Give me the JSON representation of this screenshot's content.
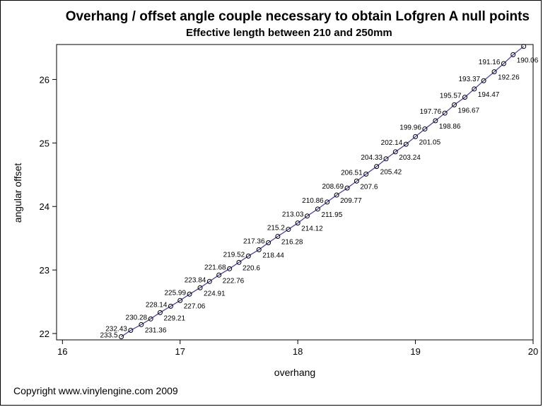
{
  "chart_data": {
    "type": "line",
    "title": "Overhang / offset angle couple necessary to obtain Lofgren A null points",
    "subtitle": "Effective length between 210 and 250mm",
    "xlabel": "overhang",
    "ylabel": "angular offset",
    "xlim": [
      15.95,
      20.0
    ],
    "ylim": [
      21.9,
      26.55
    ],
    "xticks": [
      "16",
      "17",
      "18",
      "19",
      "20"
    ],
    "yticks": [
      "22",
      "23",
      "24",
      "25",
      "26"
    ],
    "grid": false,
    "legend": "none",
    "line_color": "#3a3aa8",
    "marker_color": "#000000",
    "series": [
      {
        "x": [
          16.5,
          16.58,
          16.67,
          16.75,
          16.83,
          16.92,
          17.0,
          17.08,
          17.17,
          17.25,
          17.33,
          17.42,
          17.5,
          17.58,
          17.67,
          17.75,
          17.83,
          17.92,
          18.0,
          18.08,
          18.17,
          18.25,
          18.33,
          18.42,
          18.5,
          18.58,
          18.67,
          18.75,
          18.83,
          18.92,
          19.0,
          19.08,
          19.17,
          19.25,
          19.33,
          19.42,
          19.5,
          19.58,
          19.67,
          19.75,
          19.83,
          19.92
        ],
        "y": [
          21.95,
          22.05,
          22.14,
          22.23,
          22.33,
          22.43,
          22.52,
          22.62,
          22.72,
          22.82,
          22.92,
          23.02,
          23.12,
          23.22,
          23.32,
          23.43,
          23.53,
          23.64,
          23.74,
          23.85,
          23.96,
          24.07,
          24.18,
          24.29,
          24.4,
          24.51,
          24.63,
          24.75,
          24.86,
          24.98,
          25.1,
          25.22,
          25.35,
          25.47,
          25.6,
          25.72,
          25.85,
          25.98,
          26.12,
          26.25,
          26.39,
          26.52
        ],
        "labels": [
          "233.5",
          "232.43",
          "231.36",
          "230.28",
          "229.21",
          "228.14",
          "227.06",
          "225.99",
          "224.91",
          "223.84",
          "222.76",
          "221.68",
          "220.6",
          "219.52",
          "218.44",
          "217.36",
          "216.28",
          "215.2",
          "214.12",
          "213.03",
          "211.95",
          "210.86",
          "209.77",
          "208.69",
          "207.6",
          "206.51",
          "205.42",
          "204.33",
          "203.24",
          "202.14",
          "201.05",
          "199.96",
          "198.86",
          "197.76",
          "196.67",
          "195.57",
          "194.47",
          "193.37",
          "192.26",
          "191.16",
          "190.06",
          ""
        ],
        "label_side": [
          "left",
          "left",
          "right",
          "left",
          "right",
          "left",
          "right",
          "left",
          "right",
          "left",
          "right",
          "left",
          "right",
          "left",
          "right",
          "left",
          "right",
          "left",
          "right",
          "left",
          "right",
          "left",
          "right",
          "left",
          "right",
          "left",
          "right",
          "left",
          "right",
          "left",
          "right",
          "left",
          "right",
          "left",
          "right",
          "left",
          "right",
          "left",
          "right",
          "left",
          "right",
          "none"
        ]
      }
    ]
  },
  "footer": {
    "copyright": "Copyright www.vinylengine.com 2009"
  }
}
